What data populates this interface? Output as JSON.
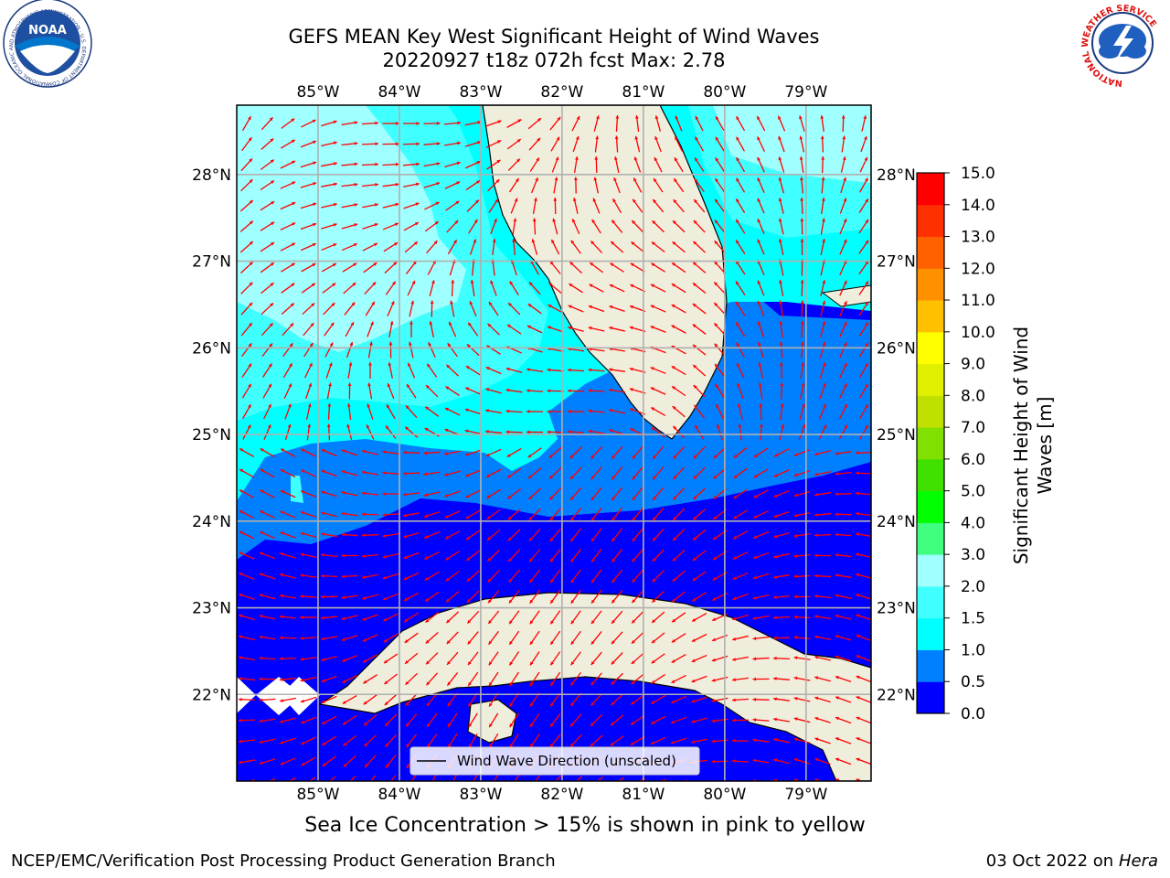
{
  "header": {
    "title_line1": "GEFS MEAN Key West Significant Height of Wind Waves",
    "title_line2": "20220927 t18z 072h fcst   Max: 2.78"
  },
  "logos": {
    "left": {
      "icon": "noaa-logo",
      "text": "NOAA",
      "ring_text": "NATIONAL OCEANIC AND ATMOSPHERIC ADMINISTRATION · U.S. DEPARTMENT OF COMMERCE"
    },
    "right": {
      "icon": "nws-logo",
      "ring_text": "NATIONAL WEATHER SERVICE"
    }
  },
  "map": {
    "lon_labels": [
      "85°W",
      "84°W",
      "83°W",
      "82°W",
      "81°W",
      "80°W",
      "79°W"
    ],
    "lat_labels": [
      "28°N",
      "27°N",
      "26°N",
      "25°N",
      "24°N",
      "23°N",
      "22°N"
    ],
    "lon_values": [
      -85,
      -84,
      -83,
      -82,
      -81,
      -80,
      -79
    ],
    "lat_values": [
      28,
      27,
      26,
      25,
      24,
      23,
      22
    ],
    "extent": {
      "lon_min": -86.0,
      "lon_max": -78.2,
      "lat_min": 21.0,
      "lat_max": 28.8
    },
    "grid": true,
    "legend": {
      "label": "Wind Wave Direction (unscaled)",
      "position": "lower-center"
    },
    "arrow_color": "#ff0000",
    "land_color": "#efeedd"
  },
  "colorbar": {
    "label_line1": "Significant Height of Wind",
    "label_line2": "Waves [m]",
    "tick_labels": [
      "0.0",
      "0.5",
      "1.0",
      "1.5",
      "2.0",
      "3.0",
      "4.0",
      "5.0",
      "6.0",
      "7.0",
      "8.0",
      "9.0",
      "10.0",
      "11.0",
      "12.0",
      "13.0",
      "14.0",
      "15.0"
    ],
    "colors": [
      "#0000ff",
      "#0080ff",
      "#00ffff",
      "#40ffff",
      "#a0ffff",
      "#40ff80",
      "#00ff00",
      "#40e000",
      "#80e000",
      "#c0e000",
      "#e0f000",
      "#ffff00",
      "#ffc000",
      "#ff9000",
      "#ff6000",
      "#ff3000",
      "#ff0000"
    ]
  },
  "footer": {
    "caption": "Sea Ice Concentration > 15% is shown in pink to yellow",
    "credit": "NCEP/EMC/Verification Post Processing Product Generation Branch",
    "date_prefix": "03 Oct 2022 on ",
    "date_host": "Hera"
  }
}
